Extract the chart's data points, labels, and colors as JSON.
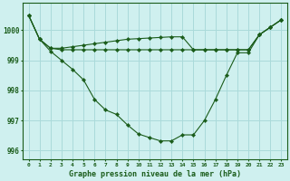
{
  "title": "Graphe pression niveau de la mer (hPa)",
  "background_color": "#cff0ef",
  "grid_color": "#aadada",
  "line_color": "#1a5c1a",
  "xlim": [
    -0.5,
    23.5
  ],
  "ylim": [
    995.7,
    1000.9
  ],
  "xtick_labels": [
    "0",
    "1",
    "2",
    "3",
    "4",
    "5",
    "6",
    "7",
    "8",
    "9",
    "10",
    "11",
    "12",
    "13",
    "14",
    "15",
    "16",
    "17",
    "18",
    "19",
    "20",
    "21",
    "22",
    "23"
  ],
  "ytick_values": [
    996,
    997,
    998,
    999,
    1000
  ],
  "series": [
    [
      1000.5,
      999.7,
      999.3,
      999.0,
      998.7,
      998.35,
      997.7,
      997.35,
      997.2,
      996.85,
      996.55,
      996.43,
      996.32,
      996.32,
      996.52,
      996.52,
      997.0,
      997.7,
      998.5,
      999.25,
      999.25,
      999.85,
      1000.1,
      1000.35
    ],
    [
      1000.5,
      999.7,
      999.4,
      999.35,
      999.35,
      999.35,
      999.35,
      999.35,
      999.35,
      999.35,
      999.35,
      999.35,
      999.35,
      999.35,
      999.35,
      999.35,
      999.35,
      999.35,
      999.35,
      999.35,
      999.35,
      999.85,
      1000.1,
      1000.35
    ],
    [
      1000.5,
      999.7,
      999.4,
      999.4,
      999.45,
      999.5,
      999.55,
      999.6,
      999.65,
      999.7,
      999.72,
      999.74,
      999.76,
      999.78,
      999.78,
      999.35,
      999.35,
      999.35,
      999.35,
      999.35,
      999.35,
      999.85,
      1000.1,
      1000.35
    ]
  ]
}
